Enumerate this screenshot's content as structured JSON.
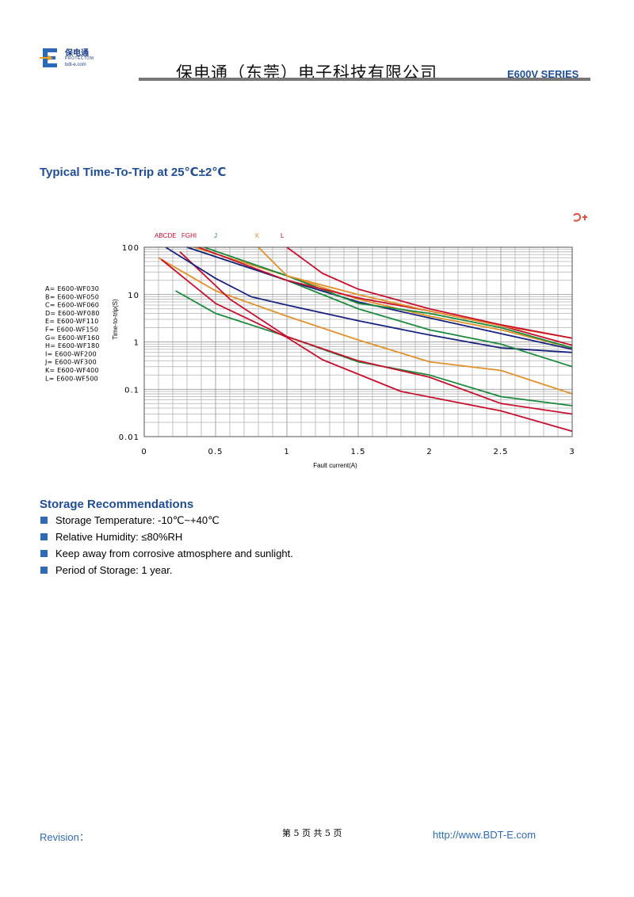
{
  "header": {
    "logo_cn": "保电通",
    "logo_en": "PROTECTOM",
    "logo_url": "bdt-e.com",
    "company_name": "保电通（东莞）电子科技有限公司",
    "series": "E600V SERIES"
  },
  "chart_section": {
    "title": "Typical Time-To-Trip at 25℃±2℃"
  },
  "chart_data": {
    "type": "line",
    "title": "",
    "xlabel": "Fault current(A)",
    "ylabel": "Time-to-trip(S)",
    "xlim": [
      0,
      3
    ],
    "ylim": [
      0.01,
      100
    ],
    "y_scale": "log",
    "grid": true,
    "x_ticks": [
      "0",
      "0.5",
      "1",
      "1.5",
      "2",
      "2.5",
      "3"
    ],
    "y_ticks": [
      "100",
      "10",
      "1",
      "0.1",
      "0.01"
    ],
    "curve_top_labels": [
      "ABCDE",
      "FGHI",
      "J",
      "K",
      "L"
    ],
    "legend": [
      "A= E600-WF030",
      "B= E600-WF050",
      "C= E600-WF060",
      "D= E600-WF080",
      "E= E600-WF110",
      "F= E600-WF150",
      "G= E600-WF160",
      "H= E600-WF180",
      "I= E600-WF200",
      "J= E600-WF300",
      "K= E600-WF400",
      "L= E600-WF500"
    ],
    "series": [
      {
        "color": "#e2902a",
        "x": [
          0.1,
          0.5,
          1.0,
          1.5,
          2.0,
          2.5,
          3.0
        ],
        "y": [
          60,
          12,
          3.5,
          1.1,
          0.38,
          0.25,
          0.08
        ]
      },
      {
        "color": "#1c8a3c",
        "x": [
          0.22,
          0.5,
          1.0,
          1.5,
          2.0,
          2.5,
          3.0
        ],
        "y": [
          12,
          4,
          1.3,
          0.38,
          0.2,
          0.07,
          0.045
        ]
      },
      {
        "color": "#c8102e",
        "x": [
          0.12,
          0.5,
          1.0,
          1.25,
          1.8,
          2.5,
          3.0
        ],
        "y": [
          55,
          6.5,
          1.25,
          0.42,
          0.09,
          0.035,
          0.013
        ]
      },
      {
        "color": "#c8102e",
        "x": [
          0.25,
          0.6,
          1.0,
          1.5,
          2.0,
          2.5,
          3.0
        ],
        "y": [
          80,
          8,
          1.3,
          0.4,
          0.18,
          0.05,
          0.03
        ]
      },
      {
        "color": "#1a237e",
        "x": [
          0.15,
          0.5,
          0.75,
          1.0,
          1.5,
          2.0,
          2.5,
          3.0
        ],
        "y": [
          100,
          22,
          9,
          6,
          2.8,
          1.4,
          0.75,
          0.6
        ]
      },
      {
        "color": "#1c8a3c",
        "x": [
          0.3,
          1.0,
          1.5,
          2.0,
          2.5,
          3.0
        ],
        "y": [
          100,
          20,
          5,
          1.8,
          0.9,
          0.3
        ]
      },
      {
        "color": "#1a237e",
        "x": [
          0.3,
          1.0,
          1.5,
          2.0,
          2.5,
          3.0
        ],
        "y": [
          100,
          20,
          7,
          3.2,
          1.5,
          0.7
        ]
      },
      {
        "color": "#e2902a",
        "x": [
          0.35,
          1.0,
          1.5,
          2.0,
          2.5,
          3.0
        ],
        "y": [
          100,
          25,
          8,
          3.5,
          1.8,
          0.75
        ]
      },
      {
        "color": "#1c8a3c",
        "x": [
          0.42,
          1.0,
          1.5,
          2.0,
          2.5,
          3.0
        ],
        "y": [
          100,
          25,
          6.5,
          4,
          2,
          0.75
        ]
      },
      {
        "color": "#c8102e",
        "x": [
          0.38,
          1.0,
          1.5,
          2.0,
          2.5,
          3.0
        ],
        "y": [
          100,
          20,
          8.5,
          4.5,
          2.2,
          0.85
        ]
      },
      {
        "color": "#e2902a",
        "x": [
          0.8,
          1.0,
          1.5,
          2.0,
          2.5,
          3.0
        ],
        "y": [
          100,
          25,
          10,
          4.5,
          2.2,
          1.2
        ]
      },
      {
        "color": "#c8102e",
        "x": [
          1.0,
          1.25,
          1.5,
          2.0,
          2.5,
          3.0
        ],
        "y": [
          100,
          28,
          13,
          5,
          2.3,
          1.2
        ]
      }
    ]
  },
  "storage": {
    "title": "Storage Recommendations",
    "items": [
      "Storage Temperature: -10℃~+40℃",
      "Relative Humidity: ≤80%RH",
      "Keep away from corrosive atmosphere and sunlight.",
      "Period of Storage: 1 year."
    ]
  },
  "footer": {
    "revision": "Revision：",
    "page": "第 5 页 共 5 页",
    "url": "http://www.BDT-E.com"
  }
}
